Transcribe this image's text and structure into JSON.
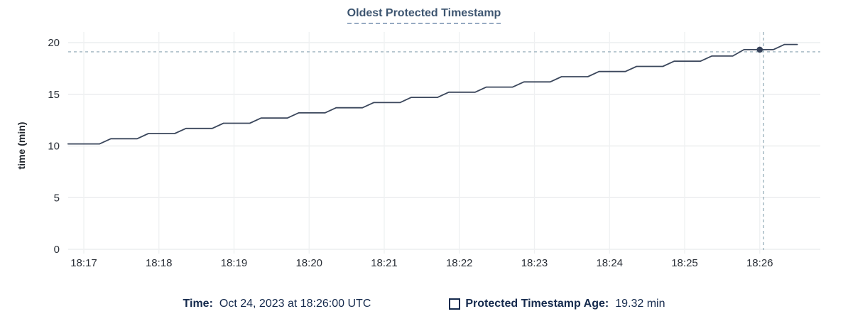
{
  "title": "Oldest Protected Timestamp",
  "legend": {
    "time_label": "Time:",
    "time_value": "Oct 24, 2023 at 18:26:00 UTC",
    "series_label": "Protected Timestamp Age:",
    "series_value": "19.32 min"
  },
  "chart_data": {
    "type": "line",
    "title": "Oldest Protected Timestamp",
    "xlabel": "",
    "ylabel": "time (min)",
    "ylim": [
      0,
      20
    ],
    "yticks": [
      0,
      5,
      10,
      15,
      20
    ],
    "xtick_labels": [
      "18:17",
      "18:18",
      "18:19",
      "18:20",
      "18:21",
      "18:22",
      "18:23",
      "18:24",
      "18:25",
      "18:26"
    ],
    "x_unit": "minutes after 18:17 UTC",
    "grid": true,
    "legend_position": "bottom",
    "series": [
      {
        "name": "Protected Timestamp Age",
        "points": [
          [
            -0.21,
            10.2
          ],
          [
            0.21,
            10.2
          ],
          [
            0.36,
            10.7
          ],
          [
            0.71,
            10.7
          ],
          [
            0.86,
            11.2
          ],
          [
            1.21,
            11.2
          ],
          [
            1.36,
            11.7
          ],
          [
            1.71,
            11.7
          ],
          [
            1.86,
            12.2
          ],
          [
            2.21,
            12.2
          ],
          [
            2.36,
            12.7
          ],
          [
            2.71,
            12.7
          ],
          [
            2.86,
            13.2
          ],
          [
            3.21,
            13.2
          ],
          [
            3.36,
            13.7
          ],
          [
            3.71,
            13.7
          ],
          [
            3.86,
            14.2
          ],
          [
            4.21,
            14.2
          ],
          [
            4.36,
            14.7
          ],
          [
            4.71,
            14.7
          ],
          [
            4.86,
            15.2
          ],
          [
            5.21,
            15.2
          ],
          [
            5.36,
            15.7
          ],
          [
            5.71,
            15.7
          ],
          [
            5.86,
            16.2
          ],
          [
            6.21,
            16.2
          ],
          [
            6.36,
            16.7
          ],
          [
            6.71,
            16.7
          ],
          [
            6.86,
            17.2
          ],
          [
            7.21,
            17.2
          ],
          [
            7.36,
            17.7
          ],
          [
            7.71,
            17.7
          ],
          [
            7.86,
            18.2
          ],
          [
            8.21,
            18.2
          ],
          [
            8.36,
            18.7
          ],
          [
            8.64,
            18.7
          ],
          [
            8.79,
            19.32
          ],
          [
            9.18,
            19.32
          ],
          [
            9.33,
            19.82
          ],
          [
            9.5,
            19.82
          ]
        ]
      }
    ],
    "hover_point": {
      "x": 9.0,
      "x_label": "18:26:00",
      "value": 19.32
    },
    "crosshair_x": 9.05,
    "colors": {
      "line": "#3b475c",
      "dot": "#36425a",
      "crosshair": "#9eb4bf",
      "grid_h": "#e8eaec",
      "grid_v": "#eff0f2",
      "tick_text": "#2a2f37",
      "axis_label_text": "#1f242b",
      "title_text": "#3d5570",
      "legend_text": "#152a4d"
    }
  }
}
